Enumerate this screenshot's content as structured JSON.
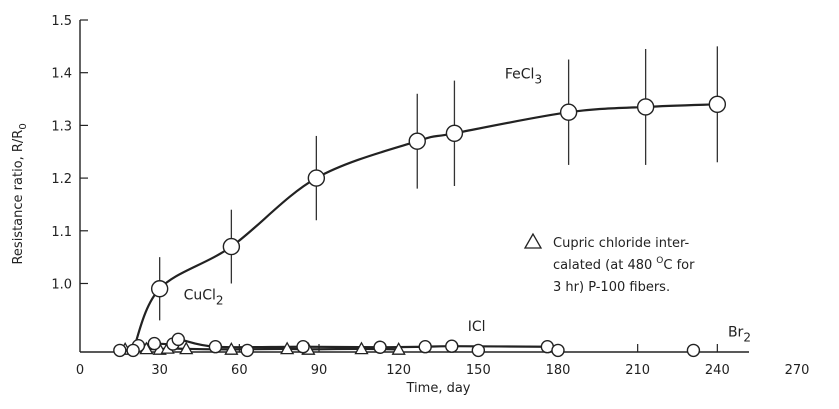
{
  "chart_data": {
    "type": "line",
    "xlabel": "Time, day",
    "ylabel_main": "Resistance ratio, R/R",
    "ylabel_sub": "0",
    "x_range": [
      0,
      270
    ],
    "y_range": [
      0.87,
      1.5
    ],
    "x_ticks": [
      0,
      30,
      60,
      90,
      120,
      150,
      180,
      210,
      240,
      270
    ],
    "y_ticks": [
      1.0,
      1.1,
      1.2,
      1.3,
      1.4,
      1.5
    ],
    "x_tick_labels": [
      "0",
      "30",
      "60",
      "90",
      "120",
      "150",
      "180",
      "210",
      "240",
      "270"
    ],
    "y_tick_labels": [
      "1.0",
      "1.1",
      "1.2",
      "1.3",
      "1.4",
      "1.5"
    ],
    "series": [
      {
        "label": {
          "main": "FeCl",
          "sub": "3"
        },
        "marker": "circle",
        "points": [
          {
            "x": 30,
            "y": 0.99,
            "err": 0.06
          },
          {
            "x": 57,
            "y": 1.07,
            "err": 0.07
          },
          {
            "x": 89,
            "y": 1.2,
            "err": 0.08
          },
          {
            "x": 127,
            "y": 1.27,
            "err": 0.09
          },
          {
            "x": 141,
            "y": 1.285,
            "err": 0.1
          },
          {
            "x": 184,
            "y": 1.325,
            "err": 0.1
          },
          {
            "x": 213,
            "y": 1.335,
            "err": 0.11
          },
          {
            "x": 240,
            "y": 1.34,
            "err": 0.11
          }
        ],
        "curve_start": [
          20,
          0.873
        ]
      },
      {
        "label": {
          "main": "CuCl",
          "sub": "2"
        },
        "marker": "triangle",
        "points": [
          {
            "x": 17,
            "y": 0.875
          },
          {
            "x": 25,
            "y": 0.876
          },
          {
            "x": 30,
            "y": 0.875
          },
          {
            "x": 33,
            "y": 0.877
          },
          {
            "x": 40,
            "y": 0.876
          },
          {
            "x": 57,
            "y": 0.875
          },
          {
            "x": 78,
            "y": 0.876
          },
          {
            "x": 86,
            "y": 0.875
          },
          {
            "x": 106,
            "y": 0.876
          },
          {
            "x": 120,
            "y": 0.875
          }
        ]
      },
      {
        "label": {
          "main": "ICl",
          "sub": ""
        },
        "marker": "circle",
        "points": [
          {
            "x": 22,
            "y": 0.882
          },
          {
            "x": 28,
            "y": 0.886
          },
          {
            "x": 35,
            "y": 0.885
          },
          {
            "x": 37,
            "y": 0.894
          },
          {
            "x": 51,
            "y": 0.88
          },
          {
            "x": 84,
            "y": 0.88
          },
          {
            "x": 113,
            "y": 0.879
          },
          {
            "x": 130,
            "y": 0.88
          },
          {
            "x": 140,
            "y": 0.881
          },
          {
            "x": 176,
            "y": 0.88
          }
        ]
      },
      {
        "label": {
          "main": "Br",
          "sub": "2"
        },
        "marker": "circle",
        "points": [
          {
            "x": 15,
            "y": 0.873
          },
          {
            "x": 20,
            "y": 0.873
          },
          {
            "x": 63,
            "y": 0.873
          },
          {
            "x": 150,
            "y": 0.873
          },
          {
            "x": 180,
            "y": 0.873
          },
          {
            "x": 231,
            "y": 0.873
          }
        ]
      }
    ],
    "legend": {
      "position": "right",
      "marker": "triangle",
      "lines": [
        "Cupric chloride inter-",
        "calated (at 480",
        "3 hr) P-100 fibers."
      ],
      "degree_sup": "O",
      "degree_after": "C for"
    }
  }
}
